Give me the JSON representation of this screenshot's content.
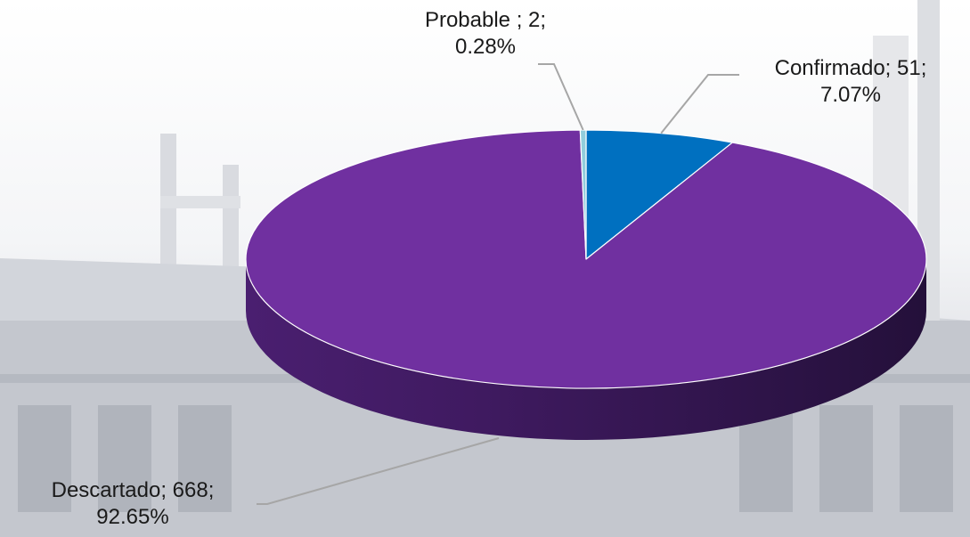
{
  "chart_data": {
    "type": "pie",
    "style": "3d",
    "title": "",
    "slices": [
      {
        "category": "Confirmado",
        "value": 51,
        "percent": "7.07%",
        "label_line1": "Confirmado; 51;",
        "label_line2": "7.07%",
        "color": "#0070c0"
      },
      {
        "category": "Descartado",
        "value": 668,
        "percent": "92.65%",
        "label_line1": "Descartado; 668;",
        "label_line2": "92.65%",
        "color": "#7030a0"
      },
      {
        "category": "Probable",
        "value": 2,
        "percent": "0.28%",
        "label_line1": "Probable ; 2;",
        "label_line2": "0.28%",
        "color": "#92cddc"
      }
    ],
    "legend": "none"
  }
}
